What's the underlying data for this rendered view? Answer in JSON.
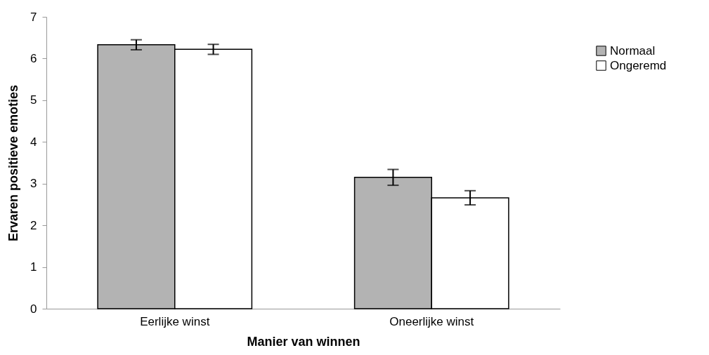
{
  "chart_data": {
    "type": "bar",
    "xlabel": "Manier van winnen",
    "ylabel": "Ervaren positieve emoties",
    "categories": [
      "Eerlijke winst",
      "Oneerlijke winst"
    ],
    "series": [
      {
        "name": "Normaal",
        "color": "#b3b3b3",
        "values": [
          6.33,
          3.15
        ],
        "errors": [
          0.12,
          0.19
        ]
      },
      {
        "name": "Ongeremd",
        "color": "#ffffff",
        "values": [
          6.22,
          2.66
        ],
        "errors": [
          0.12,
          0.17
        ]
      }
    ],
    "ylim": [
      0,
      7
    ],
    "yticks": [
      0,
      1,
      2,
      3,
      4,
      5,
      6,
      7
    ],
    "grid": false,
    "legend": "right"
  }
}
